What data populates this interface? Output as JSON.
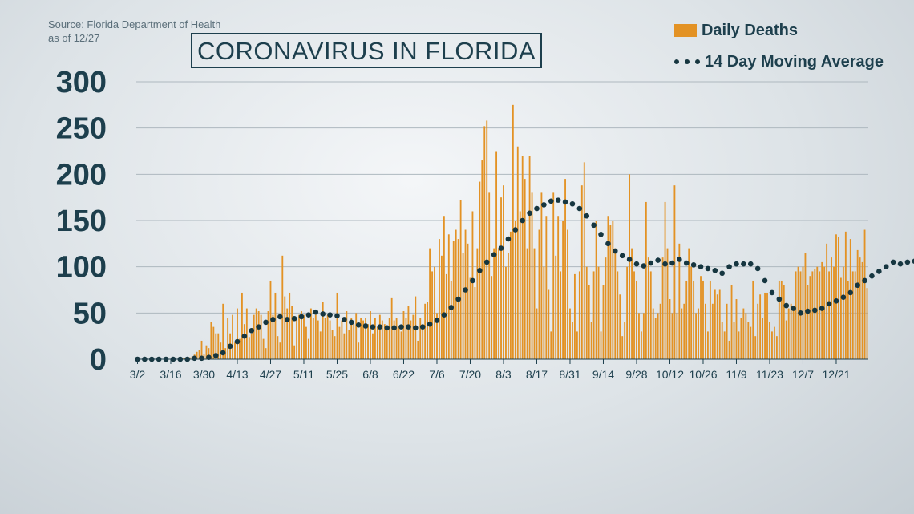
{
  "source": {
    "line1": "Source: Florida Department of Health",
    "line2": "as of 12/27"
  },
  "colors": {
    "bar": "#e39224",
    "dot": "#163640",
    "text": "#1d3f4d",
    "grid": "#aeb8bf"
  },
  "chart_data": {
    "type": "bar",
    "title": "CORONAVIRUS IN FLORIDA",
    "xlabel": "",
    "ylabel": "",
    "ylim": [
      0,
      300
    ],
    "yticks": [
      0,
      50,
      100,
      150,
      200,
      250,
      300
    ],
    "grid": true,
    "legend_position": "top-right",
    "x_range": [
      "3/2",
      "12/27"
    ],
    "x_tick_labels": [
      "3/2",
      "3/16",
      "3/30",
      "4/13",
      "4/27",
      "5/11",
      "5/25",
      "6/8",
      "6/22",
      "7/6",
      "7/20",
      "8/3",
      "8/17",
      "8/31",
      "9/14",
      "9/28",
      "10/12",
      "10/26",
      "11/9",
      "11/23",
      "12/7",
      "12/21"
    ],
    "series": [
      {
        "name": "Daily Deaths",
        "type": "bar",
        "values": [
          0,
          0,
          0,
          0,
          0,
          0,
          0,
          0,
          0,
          0,
          0,
          0,
          1,
          0,
          0,
          0,
          1,
          0,
          1,
          1,
          1,
          2,
          2,
          3,
          5,
          8,
          10,
          20,
          5,
          15,
          12,
          40,
          35,
          28,
          28,
          18,
          60,
          12,
          45,
          28,
          48,
          18,
          55,
          22,
          72,
          38,
          55,
          24,
          28,
          48,
          55,
          52,
          48,
          22,
          12,
          52,
          85,
          48,
          72,
          25,
          18,
          112,
          68,
          55,
          72,
          58,
          15,
          45,
          48,
          52,
          48,
          35,
          22,
          55,
          45,
          48,
          42,
          30,
          62,
          45,
          48,
          42,
          32,
          25,
          72,
          35,
          42,
          28,
          52,
          32,
          45,
          38,
          50,
          18,
          45,
          42,
          45,
          38,
          52,
          28,
          45,
          35,
          48,
          42,
          38,
          32,
          45,
          66,
          42,
          45,
          35,
          30,
          52,
          45,
          58,
          42,
          48,
          68,
          20,
          45,
          38,
          60,
          62,
          120,
          95,
          100,
          50,
          130,
          112,
          155,
          92,
          135,
          85,
          128,
          140,
          130,
          172,
          115,
          140,
          125,
          88,
          160,
          78,
          120,
          192,
          215,
          252,
          258,
          180,
          90,
          120,
          225,
          120,
          175,
          188,
          100,
          115,
          138,
          275,
          150,
          230,
          160,
          220,
          195,
          120,
          220,
          180,
          120,
          55,
          140,
          180,
          100,
          155,
          75,
          30,
          180,
          112,
          155,
          95,
          150,
          195,
          140,
          55,
          40,
          92,
          30,
          95,
          188,
          213,
          100,
          80,
          40,
          95,
          150,
          100,
          30,
          80,
          110,
          155,
          145,
          150,
          120,
          95,
          70,
          25,
          40,
          100,
          200,
          120,
          95,
          85,
          50,
          30,
          50,
          170,
          110,
          95,
          55,
          45,
          50,
          60,
          110,
          170,
          120,
          65,
          50,
          188,
          50,
          125,
          55,
          60,
          85,
          120,
          100,
          85,
          50,
          55,
          90,
          85,
          60,
          30,
          85,
          60,
          75,
          70,
          75,
          40,
          30,
          60,
          20,
          80,
          40,
          65,
          30,
          45,
          55,
          50,
          40,
          35,
          85,
          25,
          60,
          70,
          45,
          72,
          72,
          40,
          30,
          35,
          25,
          85,
          85,
          80,
          42,
          55,
          60,
          55,
          95,
          100,
          95,
          100,
          115,
          80,
          90,
          95,
          98,
          100,
          95,
          105,
          100,
          125,
          95,
          110,
          100,
          135,
          132,
          88,
          100,
          138,
          85,
          130,
          95,
          95,
          118,
          110,
          105,
          140,
          77
        ]
      },
      {
        "name": "14 Day Moving Average",
        "type": "dots",
        "x_step": 3,
        "values": [
          0,
          0,
          0,
          0,
          0,
          0,
          0,
          0,
          1,
          1,
          2,
          4,
          7,
          14,
          19,
          25,
          31,
          35,
          40,
          43,
          46,
          43,
          44,
          46,
          48,
          51,
          49,
          48,
          47,
          43,
          40,
          37,
          36,
          35,
          35,
          34,
          34,
          35,
          35,
          34,
          35,
          38,
          42,
          48,
          56,
          65,
          75,
          85,
          96,
          105,
          113,
          120,
          130,
          140,
          150,
          158,
          163,
          167,
          171,
          172,
          170,
          168,
          163,
          155,
          145,
          135,
          125,
          117,
          112,
          108,
          103,
          101,
          104,
          107,
          103,
          104,
          108,
          104,
          102,
          100,
          98,
          96,
          93,
          100,
          103,
          103,
          103,
          98,
          85,
          72,
          65,
          58,
          55,
          50,
          52,
          53,
          55,
          60,
          63,
          67,
          72,
          80,
          85,
          90,
          95,
          100,
          105,
          103,
          105,
          106
        ]
      }
    ]
  }
}
